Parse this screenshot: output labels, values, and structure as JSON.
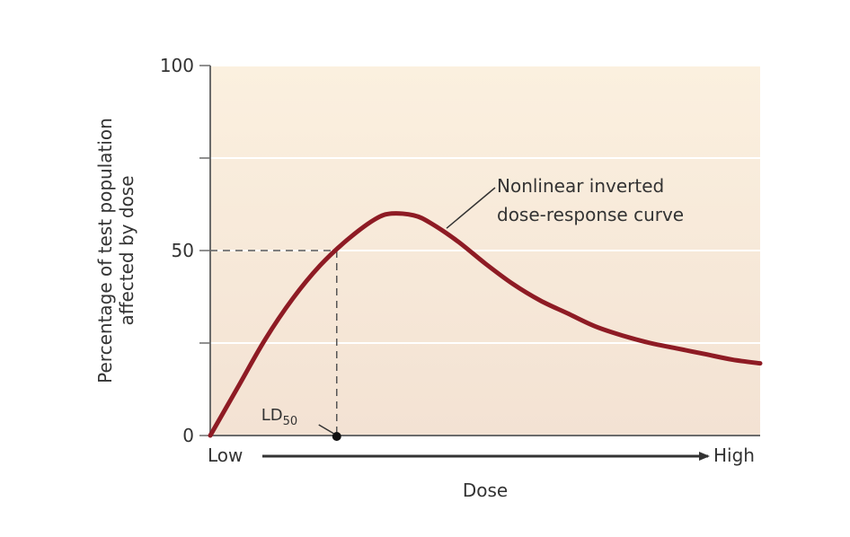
{
  "chart_data": {
    "type": "line",
    "xlabel": "Dose",
    "ylabel_line1": "Percentage of test population",
    "ylabel_line2": "affected by dose",
    "x_axis_labels": {
      "low": "Low",
      "high": "High"
    },
    "xlim": [
      0,
      100
    ],
    "ylim": [
      0,
      100
    ],
    "yticks": [
      0,
      50,
      100
    ],
    "grid": true,
    "series": [
      {
        "x": [
          0,
          5,
          10,
          15,
          20,
          25,
          30,
          33,
          37,
          40,
          45,
          50,
          55,
          60,
          65,
          70,
          75,
          80,
          85,
          90,
          95,
          100
        ],
        "y": [
          0,
          13,
          26,
          37,
          46,
          53,
          58.5,
          60,
          59.5,
          57.5,
          52.5,
          46.5,
          41,
          36.5,
          33,
          29.5,
          27,
          25,
          23.5,
          22,
          20.5,
          19.5
        ],
        "color": "#8e1b24"
      }
    ],
    "ld50": {
      "label": "LD",
      "subscript": "50",
      "x": 23,
      "y": 50
    },
    "annotation": {
      "line1": "Nonlinear inverted",
      "line2": "dose-response curve"
    },
    "colors": {
      "bg_top": "#fbf0df",
      "bg_bottom": "#f3e2d3",
      "curve": "#8e1b24",
      "axis": "#6b6b6b"
    }
  }
}
